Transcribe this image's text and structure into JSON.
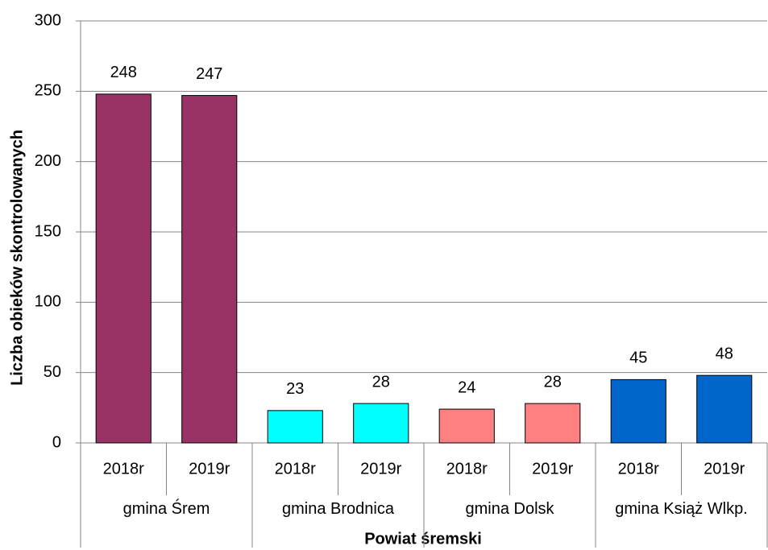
{
  "chart_data": {
    "type": "bar",
    "categories": [
      "2018r",
      "2019r",
      "2018r",
      "2019r",
      "2018r",
      "2019r",
      "2018r",
      "2019r"
    ],
    "groups": [
      "gmina Śrem",
      "gmina Brodnica",
      "gmina Dolsk",
      "gmina Książ Wlkp."
    ],
    "values": [
      248,
      247,
      23,
      28,
      24,
      28,
      45,
      48
    ],
    "colors": [
      "#993366",
      "#993366",
      "#00ffff",
      "#00ffff",
      "#ff8080",
      "#ff8080",
      "#0066cc",
      "#0066cc"
    ],
    "ylabel": "Liczba obieków skontrolowanych",
    "xlabel": "Powiat śremski",
    "ylim": [
      0,
      300
    ],
    "yticks": [
      0,
      50,
      100,
      150,
      200,
      250,
      300
    ],
    "grid": true
  }
}
